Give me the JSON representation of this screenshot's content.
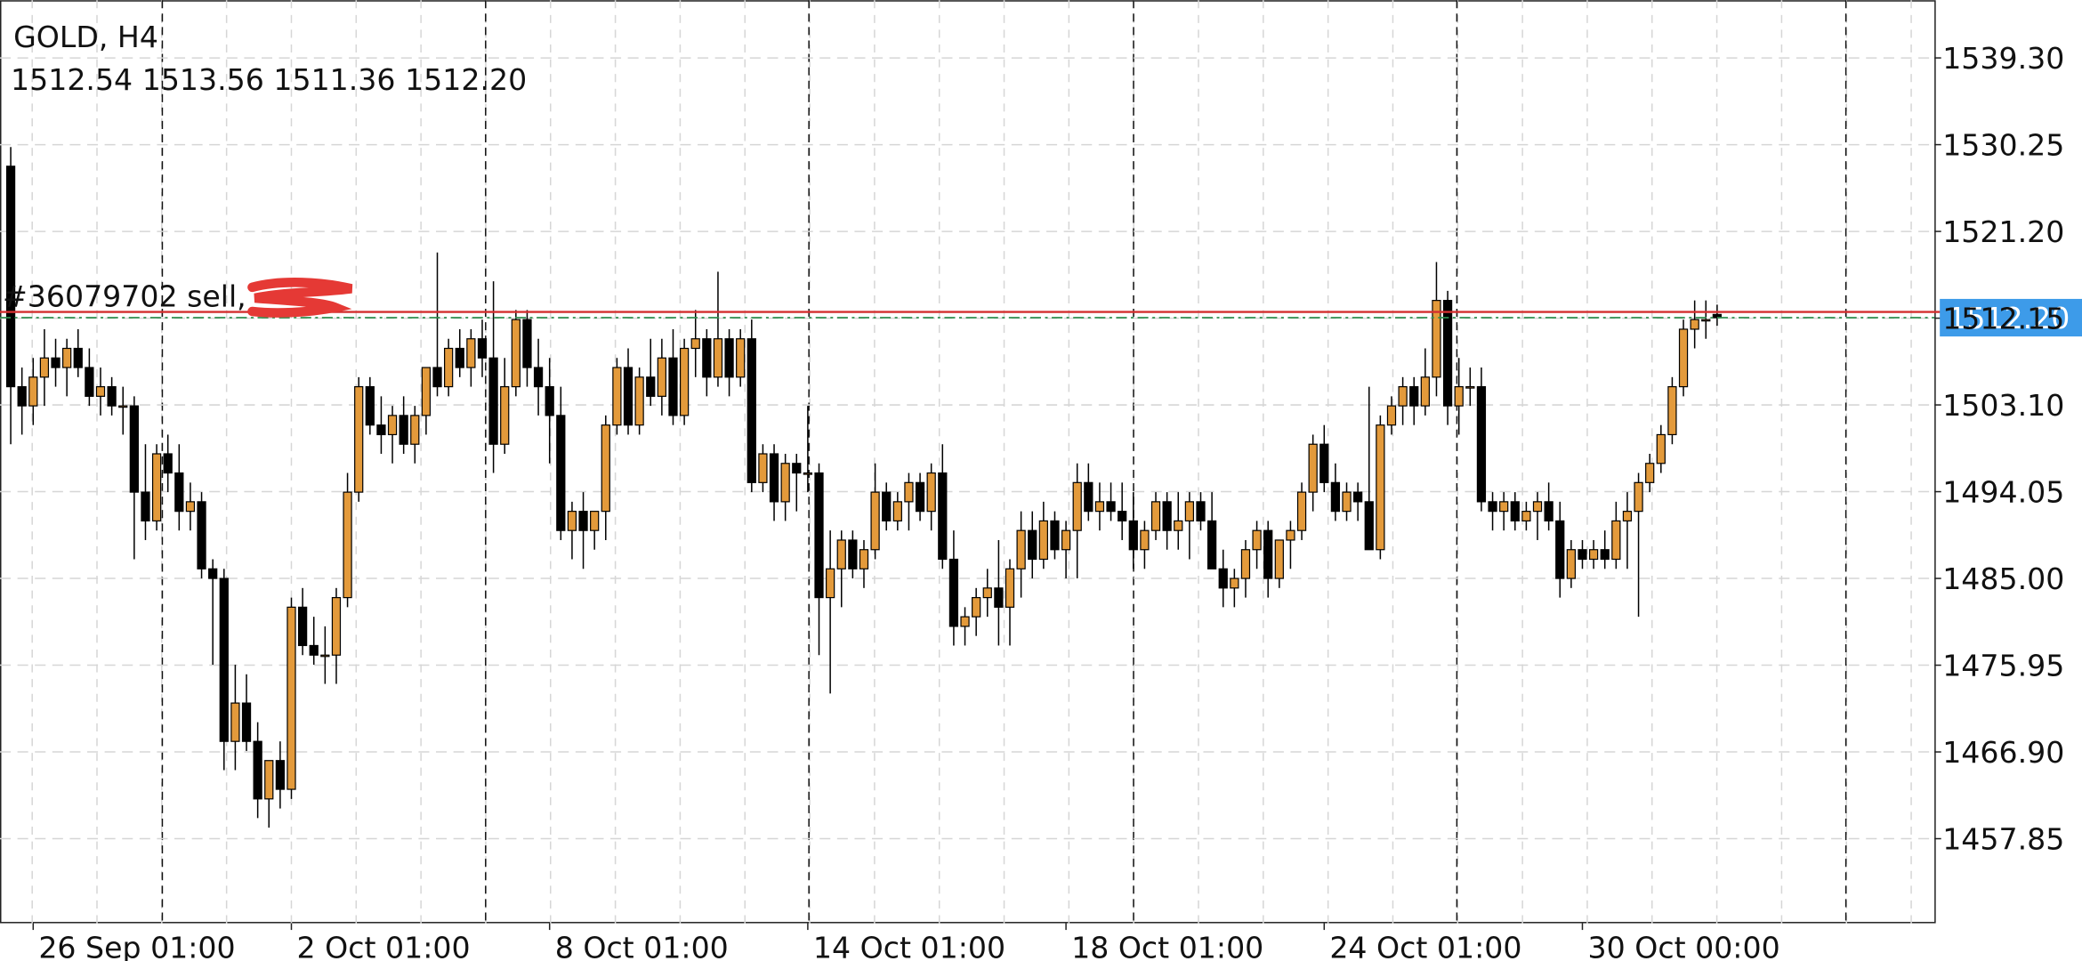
{
  "chart_data": {
    "type": "candlestick",
    "title": "GOLD, H4",
    "ohlc_labels": [
      "1512.54",
      "1513.56",
      "1511.36",
      "1512.20"
    ],
    "order": {
      "label": "#36079702 sell,",
      "price": 1512.8,
      "color": "#d32f2f"
    },
    "last_price": {
      "value": 1512.2,
      "label": "1512.20",
      "color": "#2f8f4f",
      "label_color": "#3d9be9"
    },
    "up_color": "#e39a3b",
    "down_color": "#000000",
    "grid": true,
    "ylim": [
      1449.03,
      1545.32
    ],
    "yticks": [
      {
        "value": 1457.85,
        "label": "1457.85"
      },
      {
        "value": 1466.9,
        "label": "1466.90"
      },
      {
        "value": 1475.95,
        "label": "1475.95"
      },
      {
        "value": 1485,
        "label": "1485.00"
      },
      {
        "value": 1494.05,
        "label": "1494.05"
      },
      {
        "value": 1503.1,
        "label": "1503.10"
      },
      {
        "value": 1512.15,
        "label": "1512.15"
      },
      {
        "value": 1521.2,
        "label": "1521.20"
      },
      {
        "value": 1530.25,
        "label": "1530.25"
      },
      {
        "value": 1539.3,
        "label": "1539.30"
      }
    ],
    "categories": [
      null,
      null,
      "26 Sep 01:00",
      null,
      null,
      null,
      null,
      null,
      null,
      null,
      null,
      null,
      null,
      null,
      null,
      null,
      null,
      null,
      null,
      null,
      null,
      null,
      null,
      null,
      null,
      "2 Oct 01:00",
      null,
      null,
      null,
      null,
      null,
      null,
      null,
      null,
      null,
      null,
      null,
      null,
      null,
      null,
      null,
      null,
      null,
      null,
      null,
      null,
      null,
      null,
      "8 Oct 01:00",
      null,
      null,
      null,
      null,
      null,
      null,
      null,
      null,
      null,
      null,
      null,
      null,
      null,
      null,
      null,
      null,
      null,
      null,
      null,
      null,
      null,
      null,
      "14 Oct 01:00",
      null,
      null,
      null,
      null,
      null,
      null,
      null,
      null,
      null,
      null,
      null,
      null,
      null,
      null,
      null,
      null,
      null,
      null,
      null,
      null,
      null,
      null,
      "18 Oct 01:00",
      null,
      null,
      null,
      null,
      null,
      null,
      null,
      null,
      null,
      null,
      null,
      null,
      null,
      null,
      null,
      null,
      null,
      null,
      null,
      null,
      null,
      null,
      "24 Oct 01:00",
      null,
      null,
      null,
      null,
      null,
      null,
      null,
      null,
      null,
      null,
      null,
      null,
      null,
      null,
      null,
      null,
      null,
      null,
      null,
      null,
      null,
      null,
      "30 Oct 00:00",
      null,
      null,
      null,
      null,
      null,
      null,
      null,
      null,
      null,
      null,
      null,
      null
    ],
    "candles": [
      [
        1528,
        1530,
        1499,
        1505
      ],
      [
        1505,
        1507,
        1500,
        1503
      ],
      [
        1503,
        1508,
        1501,
        1506
      ],
      [
        1506,
        1511,
        1503,
        1508
      ],
      [
        1508,
        1510,
        1505,
        1507
      ],
      [
        1507,
        1510,
        1504,
        1509
      ],
      [
        1509,
        1511,
        1506,
        1507
      ],
      [
        1507,
        1509,
        1503,
        1504
      ],
      [
        1504,
        1507,
        1502,
        1505
      ],
      [
        1505,
        1506,
        1502,
        1503
      ],
      [
        1503,
        1505,
        1500,
        1503
      ],
      [
        1503,
        1504,
        1487,
        1494
      ],
      [
        1494,
        1499,
        1489,
        1491
      ],
      [
        1491,
        1499,
        1490,
        1498
      ],
      [
        1498,
        1500,
        1494,
        1496
      ],
      [
        1496,
        1499,
        1490,
        1492
      ],
      [
        1492,
        1495,
        1490,
        1493
      ],
      [
        1493,
        1494,
        1485,
        1486
      ],
      [
        1486,
        1487,
        1476,
        1485
      ],
      [
        1485,
        1486,
        1465,
        1468
      ],
      [
        1468,
        1476,
        1465,
        1472
      ],
      [
        1472,
        1475,
        1467,
        1468
      ],
      [
        1468,
        1470,
        1460,
        1462
      ],
      [
        1462,
        1466,
        1459,
        1466
      ],
      [
        1466,
        1468,
        1461,
        1463
      ],
      [
        1463,
        1483,
        1462,
        1482
      ],
      [
        1482,
        1484,
        1477,
        1478
      ],
      [
        1478,
        1481,
        1476,
        1477
      ],
      [
        1477,
        1480,
        1474,
        1477
      ],
      [
        1477,
        1484,
        1474,
        1483
      ],
      [
        1483,
        1496,
        1482,
        1494
      ],
      [
        1494,
        1506,
        1493,
        1505
      ],
      [
        1505,
        1506,
        1500,
        1501
      ],
      [
        1501,
        1504,
        1498,
        1500
      ],
      [
        1500,
        1503,
        1497,
        1502
      ],
      [
        1502,
        1504,
        1498,
        1499
      ],
      [
        1499,
        1503,
        1497,
        1502
      ],
      [
        1502,
        1507,
        1500,
        1507
      ],
      [
        1507,
        1519,
        1504,
        1505
      ],
      [
        1505,
        1510,
        1504,
        1509
      ],
      [
        1509,
        1511,
        1506,
        1507
      ],
      [
        1507,
        1511,
        1505,
        1510
      ],
      [
        1510,
        1512,
        1506,
        1508
      ],
      [
        1508,
        1516,
        1496,
        1499
      ],
      [
        1499,
        1508,
        1498,
        1505
      ],
      [
        1505,
        1513,
        1504,
        1512
      ],
      [
        1512,
        1513,
        1505,
        1507
      ],
      [
        1507,
        1510,
        1502,
        1505
      ],
      [
        1505,
        1508,
        1497,
        1502
      ],
      [
        1502,
        1505,
        1489,
        1490
      ],
      [
        1490,
        1493,
        1487,
        1492
      ],
      [
        1492,
        1494,
        1486,
        1490
      ],
      [
        1490,
        1492,
        1488,
        1492
      ],
      [
        1492,
        1502,
        1489,
        1501
      ],
      [
        1501,
        1508,
        1500,
        1507
      ],
      [
        1507,
        1509,
        1500,
        1501
      ],
      [
        1501,
        1507,
        1500,
        1506
      ],
      [
        1506,
        1510,
        1503,
        1504
      ],
      [
        1504,
        1510,
        1502,
        1508
      ],
      [
        1508,
        1511,
        1501,
        1502
      ],
      [
        1502,
        1510,
        1501,
        1509
      ],
      [
        1509,
        1513,
        1506,
        1510
      ],
      [
        1510,
        1511,
        1504,
        1506
      ],
      [
        1506,
        1517,
        1505,
        1510
      ],
      [
        1510,
        1511,
        1504,
        1506
      ],
      [
        1506,
        1511,
        1505,
        1510
      ],
      [
        1510,
        1512,
        1494,
        1495
      ],
      [
        1495,
        1499,
        1494,
        1498
      ],
      [
        1498,
        1499,
        1491,
        1493
      ],
      [
        1493,
        1498,
        1491,
        1497
      ],
      [
        1497,
        1498,
        1492,
        1496
      ],
      [
        1496,
        1503,
        1494,
        1496
      ],
      [
        1496,
        1497,
        1477,
        1483
      ],
      [
        1483,
        1490,
        1473,
        1486
      ],
      [
        1486,
        1490,
        1482,
        1489
      ],
      [
        1489,
        1490,
        1485,
        1486
      ],
      [
        1486,
        1489,
        1484,
        1488
      ],
      [
        1488,
        1497,
        1487,
        1494
      ],
      [
        1494,
        1495,
        1490,
        1491
      ],
      [
        1491,
        1494,
        1490,
        1493
      ],
      [
        1493,
        1496,
        1490,
        1495
      ],
      [
        1495,
        1496,
        1491,
        1492
      ],
      [
        1492,
        1497,
        1490,
        1496
      ],
      [
        1496,
        1499,
        1486,
        1487
      ],
      [
        1487,
        1490,
        1478,
        1480
      ],
      [
        1480,
        1482,
        1478,
        1481
      ],
      [
        1481,
        1484,
        1479,
        1483
      ],
      [
        1483,
        1486,
        1481,
        1484
      ],
      [
        1484,
        1489,
        1478,
        1482
      ],
      [
        1482,
        1487,
        1478,
        1486
      ],
      [
        1486,
        1492,
        1483,
        1490
      ],
      [
        1490,
        1492,
        1485,
        1487
      ],
      [
        1487,
        1493,
        1486,
        1491
      ],
      [
        1491,
        1492,
        1487,
        1488
      ],
      [
        1488,
        1491,
        1485,
        1490
      ],
      [
        1490,
        1497,
        1485,
        1495
      ],
      [
        1495,
        1497,
        1491,
        1492
      ],
      [
        1492,
        1495,
        1490,
        1493
      ],
      [
        1493,
        1495,
        1491,
        1492
      ],
      [
        1492,
        1495,
        1489,
        1491
      ],
      [
        1491,
        1494,
        1486,
        1488
      ],
      [
        1488,
        1491,
        1486,
        1490
      ],
      [
        1490,
        1494,
        1489,
        1493
      ],
      [
        1493,
        1494,
        1488,
        1490
      ],
      [
        1490,
        1494,
        1488,
        1491
      ],
      [
        1491,
        1494,
        1487,
        1493
      ],
      [
        1493,
        1494,
        1490,
        1491
      ],
      [
        1491,
        1494,
        1486,
        1486
      ],
      [
        1486,
        1488,
        1482,
        1484
      ],
      [
        1484,
        1486,
        1482,
        1485
      ],
      [
        1485,
        1489,
        1483,
        1488
      ],
      [
        1488,
        1491,
        1486,
        1490
      ],
      [
        1490,
        1491,
        1483,
        1485
      ],
      [
        1485,
        1489,
        1484,
        1489
      ],
      [
        1489,
        1491,
        1486,
        1490
      ],
      [
        1490,
        1495,
        1489,
        1494
      ],
      [
        1494,
        1500,
        1492,
        1499
      ],
      [
        1499,
        1501,
        1494,
        1495
      ],
      [
        1495,
        1497,
        1491,
        1492
      ],
      [
        1492,
        1495,
        1491,
        1494
      ],
      [
        1494,
        1495,
        1491,
        1493
      ],
      [
        1493,
        1505,
        1488,
        1488
      ],
      [
        1488,
        1502,
        1487,
        1501
      ],
      [
        1501,
        1504,
        1500,
        1503
      ],
      [
        1503,
        1506,
        1501,
        1505
      ],
      [
        1505,
        1506,
        1501,
        1503
      ],
      [
        1503,
        1509,
        1502,
        1506
      ],
      [
        1506,
        1518,
        1504,
        1514
      ],
      [
        1514,
        1515,
        1501,
        1503
      ],
      [
        1503,
        1508,
        1500,
        1505
      ],
      [
        1505,
        1507,
        1503,
        1505
      ],
      [
        1505,
        1507,
        1492,
        1493
      ],
      [
        1493,
        1494,
        1490,
        1492
      ],
      [
        1492,
        1494,
        1490,
        1493
      ],
      [
        1493,
        1494,
        1490,
        1491
      ],
      [
        1491,
        1493,
        1490,
        1492
      ],
      [
        1492,
        1494,
        1489,
        1493
      ],
      [
        1493,
        1495,
        1490,
        1491
      ],
      [
        1491,
        1493,
        1483,
        1485
      ],
      [
        1485,
        1489,
        1484,
        1488
      ],
      [
        1488,
        1489,
        1486,
        1487
      ],
      [
        1487,
        1489,
        1486,
        1488
      ],
      [
        1488,
        1490,
        1486,
        1487
      ],
      [
        1487,
        1493,
        1486,
        1491
      ],
      [
        1491,
        1494,
        1486,
        1492
      ],
      [
        1492,
        1496,
        1481,
        1495
      ],
      [
        1495,
        1498,
        1494,
        1497
      ],
      [
        1497,
        1501,
        1496,
        1500
      ],
      [
        1500,
        1506,
        1499,
        1505
      ],
      [
        1505,
        1512,
        1504,
        1511
      ],
      [
        1511,
        1514,
        1509,
        1512
      ],
      [
        1512,
        1514,
        1510,
        1512
      ],
      [
        1512.54,
        1513.56,
        1511.36,
        1512.2
      ]
    ]
  }
}
